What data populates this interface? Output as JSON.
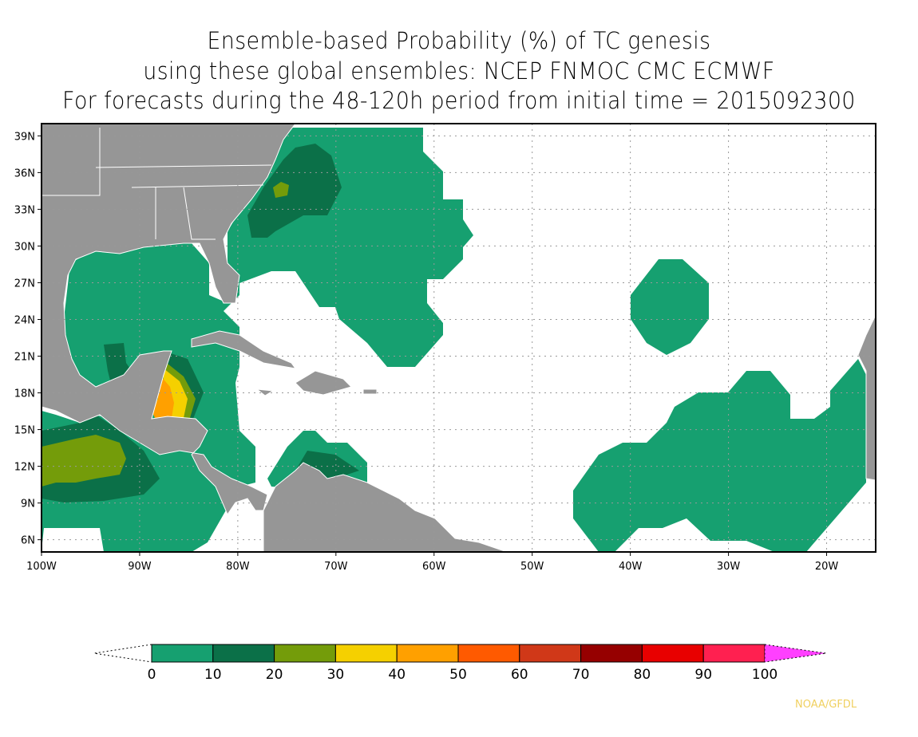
{
  "title": {
    "line1": "Ensemble-based Probability (%) of TC genesis",
    "line2": "using these global ensembles:   NCEP FNMOC CMC ECMWF",
    "line3": "For forecasts during the 48-120h period from initial time = 2015092300"
  },
  "credit": "NOAA/GFDL",
  "chart_data": {
    "type": "map",
    "lon_range": [
      -100,
      -15
    ],
    "lat_range": [
      5,
      40
    ],
    "lat_ticks": [
      "6N",
      "9N",
      "12N",
      "15N",
      "18N",
      "21N",
      "24N",
      "27N",
      "30N",
      "33N",
      "36N",
      "39N"
    ],
    "lat_values": [
      6,
      9,
      12,
      15,
      18,
      21,
      24,
      27,
      30,
      33,
      36,
      39
    ],
    "lon_ticks": [
      "100W",
      "90W",
      "80W",
      "70W",
      "60W",
      "50W",
      "40W",
      "30W",
      "20W"
    ],
    "lon_values": [
      -100,
      -90,
      -80,
      -70,
      -60,
      -50,
      -40,
      -30,
      -20
    ],
    "colorbar": {
      "levels": [
        "0",
        "10",
        "20",
        "30",
        "40",
        "50",
        "60",
        "70",
        "80",
        "90",
        "100"
      ],
      "colors": [
        "#16a070",
        "#0b7048",
        "#749c0a",
        "#f5d000",
        "#ffa000",
        "#ff5a00",
        "#d03818",
        "#960000",
        "#e80000",
        "#ff2050"
      ],
      "over_color": "#ff40ff"
    },
    "land_color": "#969696",
    "grid": "dotted"
  }
}
